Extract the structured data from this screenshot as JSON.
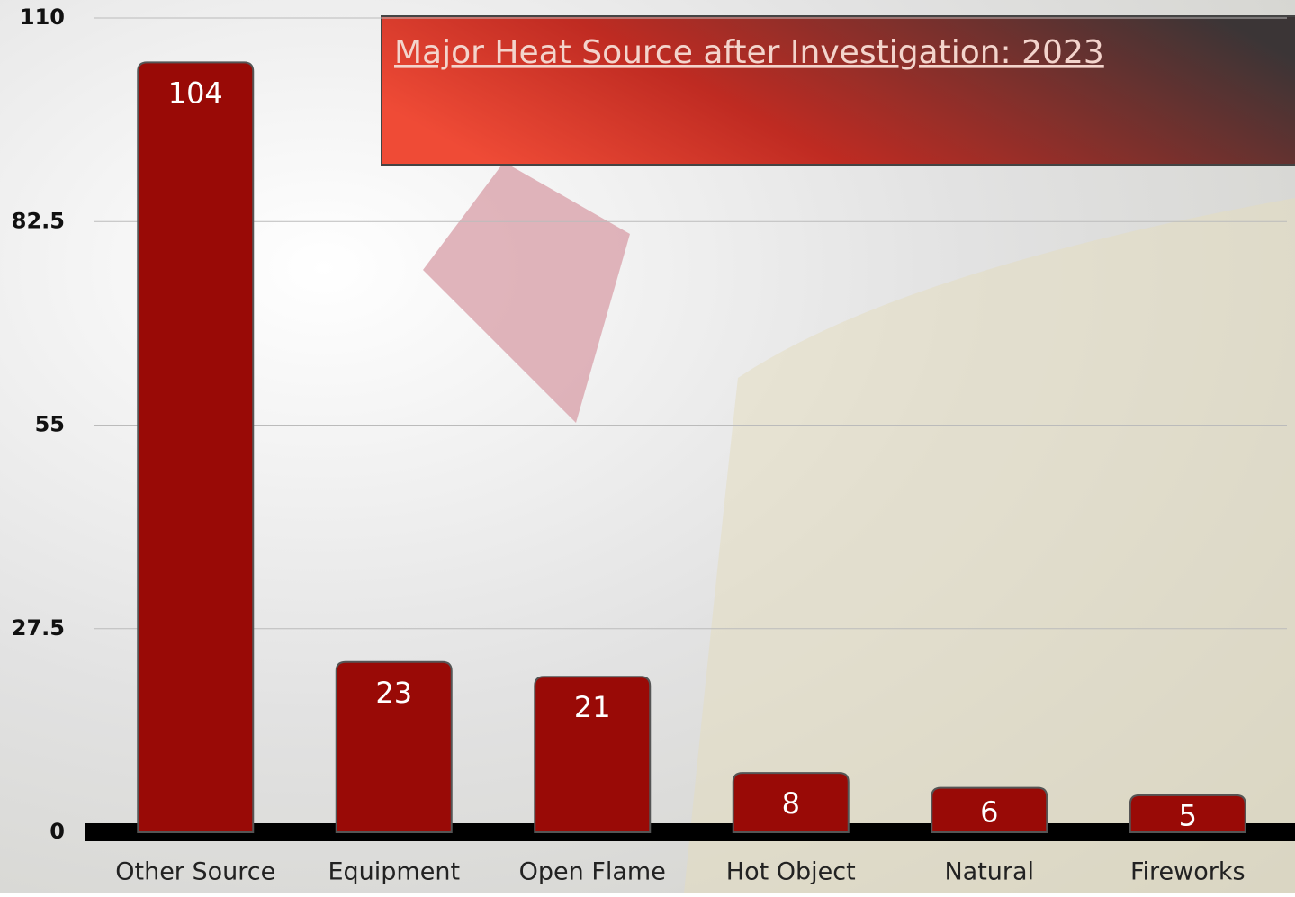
{
  "chart_data": {
    "type": "bar",
    "title": "Major Heat Source after Investigation: 2023",
    "categories": [
      "Other Source",
      "Equipment",
      "Open Flame",
      "Hot Object",
      "Natural",
      "Fireworks"
    ],
    "values": [
      104,
      23,
      21,
      8,
      6,
      5
    ],
    "color": "#990a06",
    "ylim": [
      0,
      110
    ],
    "yticks": [
      0,
      27.5,
      55,
      82.5,
      110
    ],
    "grid": true
  }
}
